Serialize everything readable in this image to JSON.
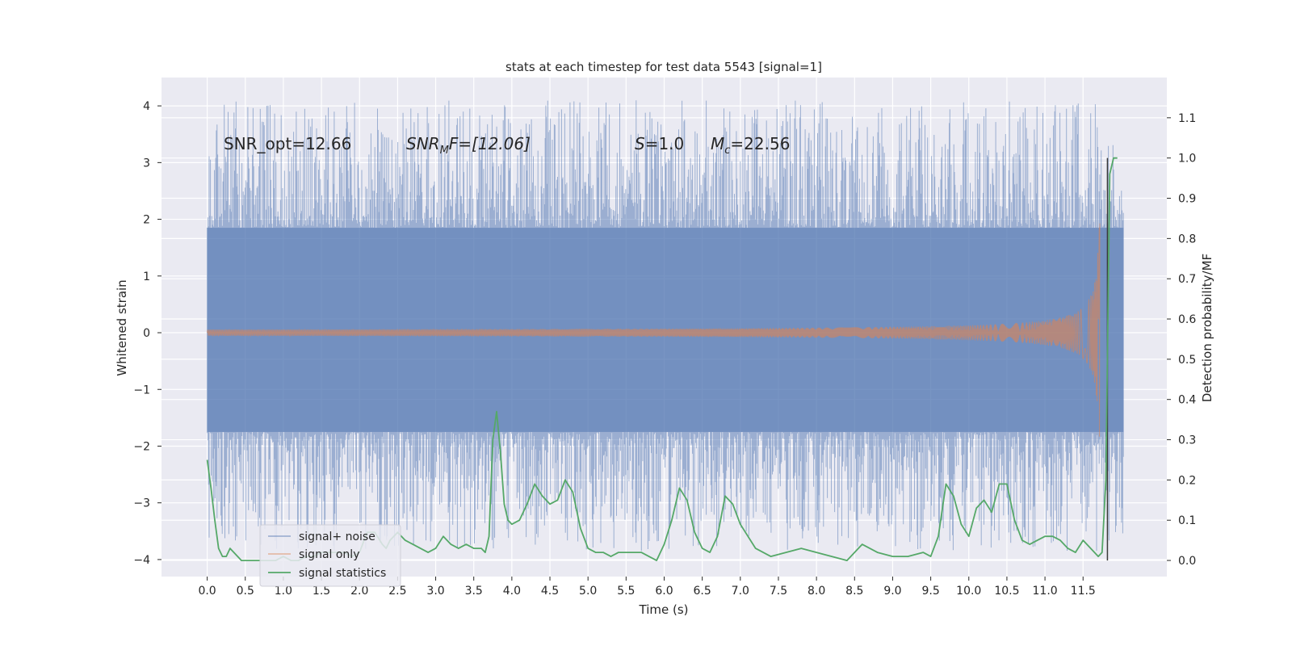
{
  "chart_data": {
    "type": "line",
    "title": "stats at each timestep for test data 5543 [signal=1]",
    "xlabel": "Time (s)",
    "ylabel_left": "Whitened strain",
    "ylabel_right": "Detection probability/MF",
    "xlim": [
      -0.6,
      12.6
    ],
    "ylim_left": [
      -4.3,
      4.5
    ],
    "ylim_right": [
      -0.04,
      1.2
    ],
    "x_ticks": [
      "0.0",
      "0.5",
      "1.0",
      "1.5",
      "2.0",
      "2.5",
      "3.0",
      "3.5",
      "4.0",
      "4.5",
      "5.0",
      "5.5",
      "6.0",
      "6.5",
      "7.0",
      "7.5",
      "8.0",
      "8.5",
      "9.0",
      "9.5",
      "10.0",
      "10.5",
      "11.0",
      "11.5"
    ],
    "y_ticks_left": [
      "−4",
      "−3",
      "−2",
      "−1",
      "0",
      "1",
      "2",
      "3",
      "4"
    ],
    "y_ticks_right": [
      "0.0",
      "0.1",
      "0.2",
      "0.3",
      "0.4",
      "0.5",
      "0.6",
      "0.7",
      "0.8",
      "0.9",
      "1.0",
      "1.1"
    ],
    "grid": true,
    "legend_position": "bottom-left",
    "annotations": {
      "snr_opt": "SNR_opt=12.66",
      "snr_mf_base": "SNR",
      "snr_mf_sub": "M",
      "snr_mf_rest": "F=[12.06]",
      "s_var": "S",
      "s_rest": "=1.0",
      "mc_var": "M",
      "mc_sub": "c",
      "mc_rest": "=22.56"
    },
    "vertical_marker": {
      "x": 11.82
    },
    "noise_envelope": {
      "dense_band": [
        -1.75,
        1.85
      ],
      "typical_peaks_max": 4.1,
      "typical_peaks_min": -3.85,
      "x_range": [
        0.0,
        12.03
      ]
    },
    "series": [
      {
        "name": "signal+ noise",
        "color": "#4c72b0",
        "axis": "left"
      },
      {
        "name": "signal only",
        "color": "#dd8452",
        "axis": "left",
        "chirp": {
          "start_x": 0.0,
          "end_x": 11.72,
          "start_amp": 0.03,
          "end_amp": 2.6
        }
      },
      {
        "name": "signal statistics",
        "color": "#55a868",
        "axis": "right",
        "x": [
          0.0,
          0.05,
          0.1,
          0.15,
          0.2,
          0.25,
          0.3,
          0.35,
          0.4,
          0.45,
          0.5,
          0.6,
          0.7,
          0.8,
          0.9,
          1.0,
          1.1,
          1.2,
          1.3,
          1.4,
          1.5,
          1.6,
          1.7,
          1.8,
          1.9,
          2.0,
          2.1,
          2.2,
          2.3,
          2.35,
          2.4,
          2.5,
          2.6,
          2.7,
          2.8,
          2.9,
          3.0,
          3.1,
          3.2,
          3.3,
          3.4,
          3.5,
          3.6,
          3.65,
          3.7,
          3.75,
          3.8,
          3.85,
          3.9,
          3.95,
          4.0,
          4.1,
          4.2,
          4.3,
          4.4,
          4.5,
          4.6,
          4.7,
          4.8,
          4.9,
          5.0,
          5.1,
          5.2,
          5.3,
          5.4,
          5.5,
          5.6,
          5.7,
          5.8,
          5.9,
          6.0,
          6.1,
          6.2,
          6.3,
          6.4,
          6.5,
          6.6,
          6.7,
          6.8,
          6.9,
          7.0,
          7.2,
          7.4,
          7.6,
          7.8,
          8.0,
          8.2,
          8.4,
          8.5,
          8.6,
          8.8,
          9.0,
          9.2,
          9.4,
          9.5,
          9.6,
          9.7,
          9.8,
          9.9,
          10.0,
          10.1,
          10.2,
          10.3,
          10.4,
          10.5,
          10.6,
          10.7,
          10.8,
          10.9,
          11.0,
          11.1,
          11.2,
          11.3,
          11.4,
          11.5,
          11.6,
          11.7,
          11.75,
          11.8,
          11.85,
          11.9,
          11.95
        ],
        "values": [
          0.25,
          0.18,
          0.1,
          0.03,
          0.01,
          0.01,
          0.03,
          0.02,
          0.01,
          0.0,
          0.0,
          0.0,
          0.0,
          0.0,
          0.0,
          0.01,
          0.0,
          0.0,
          0.01,
          0.01,
          0.02,
          0.02,
          0.02,
          0.02,
          0.01,
          0.02,
          0.07,
          0.07,
          0.04,
          0.03,
          0.05,
          0.07,
          0.05,
          0.04,
          0.03,
          0.02,
          0.03,
          0.06,
          0.04,
          0.03,
          0.04,
          0.03,
          0.03,
          0.02,
          0.06,
          0.3,
          0.37,
          0.27,
          0.14,
          0.1,
          0.09,
          0.1,
          0.14,
          0.19,
          0.16,
          0.14,
          0.15,
          0.2,
          0.17,
          0.08,
          0.03,
          0.02,
          0.02,
          0.01,
          0.02,
          0.02,
          0.02,
          0.02,
          0.01,
          0.0,
          0.04,
          0.1,
          0.18,
          0.15,
          0.07,
          0.03,
          0.02,
          0.06,
          0.16,
          0.14,
          0.09,
          0.03,
          0.01,
          0.02,
          0.03,
          0.02,
          0.01,
          0.0,
          0.02,
          0.04,
          0.02,
          0.01,
          0.01,
          0.02,
          0.01,
          0.06,
          0.19,
          0.16,
          0.09,
          0.06,
          0.13,
          0.15,
          0.12,
          0.19,
          0.19,
          0.1,
          0.05,
          0.04,
          0.05,
          0.06,
          0.06,
          0.05,
          0.03,
          0.02,
          0.05,
          0.03,
          0.01,
          0.02,
          0.2,
          0.96,
          1.0,
          1.0
        ]
      }
    ]
  }
}
